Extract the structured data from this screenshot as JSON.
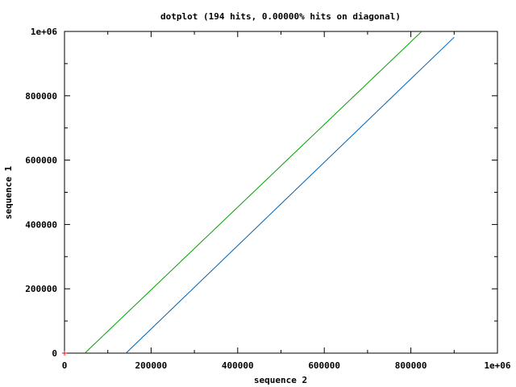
{
  "chart_data": {
    "type": "line",
    "title": "dotplot (194 hits, 0.00000% hits on diagonal)",
    "xlabel": "sequence 2",
    "ylabel": "sequence 1",
    "xlim": [
      0,
      1000000
    ],
    "ylim": [
      0,
      1000000
    ],
    "x_ticks": [
      0,
      200000,
      400000,
      600000,
      800000,
      1000000
    ],
    "x_tick_labels": [
      "0",
      "200000",
      "400000",
      "600000",
      "800000",
      "1e+06"
    ],
    "y_ticks": [
      0,
      200000,
      400000,
      600000,
      800000,
      1000000
    ],
    "y_tick_labels": [
      "0",
      "200000",
      "400000",
      "600000",
      "800000",
      "1e+06"
    ],
    "grid": false,
    "legend": "none",
    "series": [
      {
        "color": "#00a000",
        "style": "line",
        "points": [
          [
            47000,
            0
          ],
          [
            825000,
            1000000
          ]
        ]
      },
      {
        "color": "#0060ad",
        "style": "line",
        "points": [
          [
            142000,
            0
          ],
          [
            900000,
            982000
          ]
        ]
      },
      {
        "color": "#ff0000",
        "style": "point",
        "points": [
          [
            0,
            0
          ]
        ]
      }
    ]
  }
}
